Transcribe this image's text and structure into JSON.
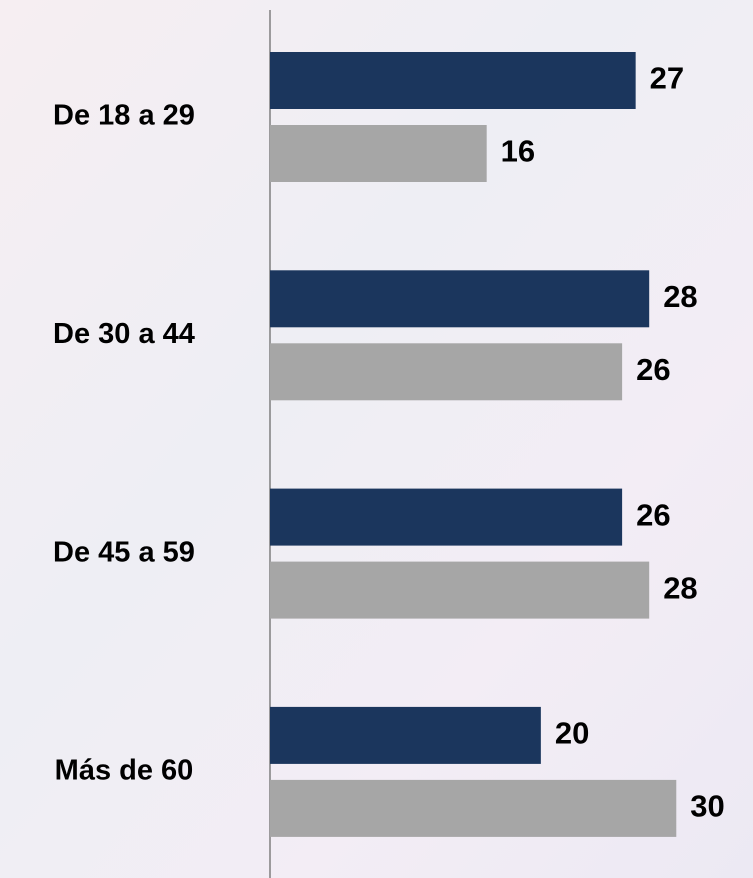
{
  "chart_data": {
    "type": "hbar",
    "categories": [
      "De 18 a 29",
      "De 30 a 44",
      "De 45 a 59",
      "Más de 60"
    ],
    "series": [
      {
        "color": "#1b365d",
        "values": [
          27,
          28,
          26,
          20
        ]
      },
      {
        "color": "#a6a6a6",
        "values": [
          16,
          26,
          28,
          30
        ]
      }
    ],
    "xlim": [
      0,
      35
    ]
  }
}
